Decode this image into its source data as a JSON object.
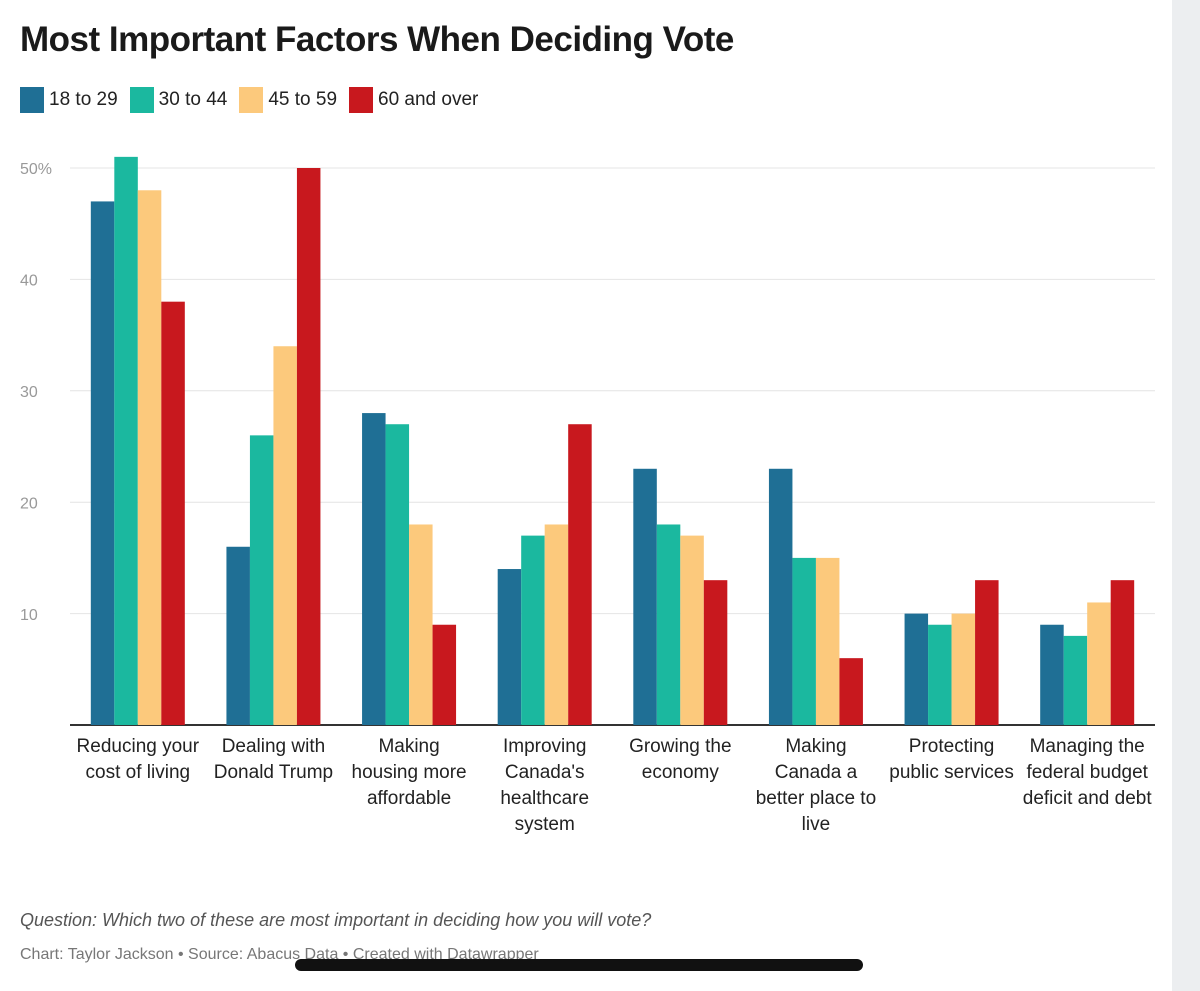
{
  "chart_data": {
    "type": "bar",
    "title": "Most Important Factors When Deciding Vote",
    "categories": [
      "Reducing your cost of living",
      "Dealing with Donald Trump",
      "Making housing more affordable",
      "Improving Canada's healthcare system",
      "Growing the economy",
      "Making Canada a better place to live",
      "Protecting public services",
      "Managing the federal budget deficit and debt"
    ],
    "series": [
      {
        "name": "18 to 29",
        "color": "#1f6f95",
        "values": [
          47,
          16,
          28,
          14,
          23,
          23,
          10,
          9
        ]
      },
      {
        "name": "30 to 44",
        "color": "#1bb89f",
        "values": [
          51,
          26,
          27,
          17,
          18,
          15,
          9,
          8
        ]
      },
      {
        "name": "45 to 59",
        "color": "#fcc97c",
        "values": [
          48,
          34,
          18,
          18,
          17,
          15,
          10,
          11
        ]
      },
      {
        "name": "60 and over",
        "color": "#c8181e",
        "values": [
          38,
          50,
          9,
          27,
          13,
          6,
          13,
          13
        ]
      }
    ],
    "ylim": [
      0,
      50
    ],
    "yticks": [
      10,
      20,
      30,
      40,
      {
        "value": 50,
        "label": "50%"
      }
    ],
    "grid": true,
    "question": "Question: Which two of these are most important in deciding how you will vote?",
    "credit": "Chart: Taylor Jackson • Source: Abacus Data • Created with Datawrapper"
  }
}
